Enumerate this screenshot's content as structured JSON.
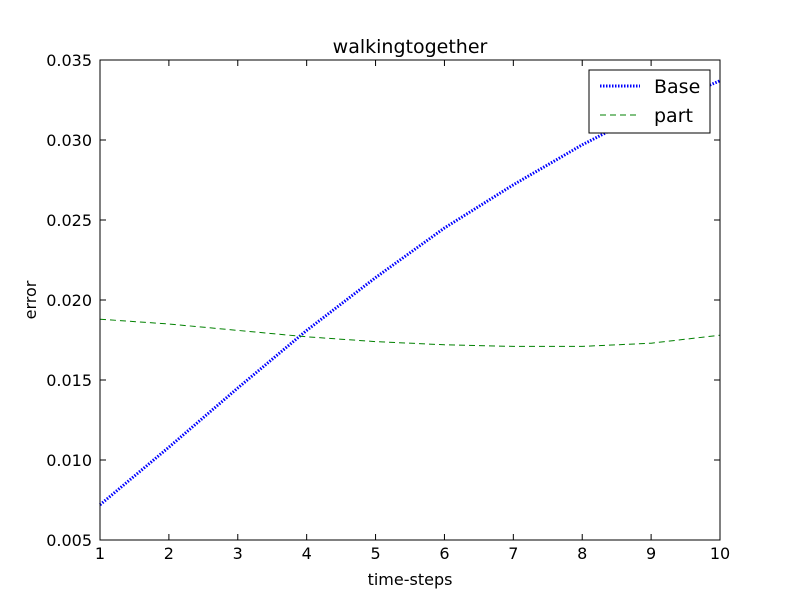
{
  "chart_data": {
    "type": "line",
    "title": "walkingtogether",
    "xlabel": "time-steps",
    "ylabel": "error",
    "xlim": [
      1,
      10
    ],
    "ylim": [
      0.005,
      0.035
    ],
    "xticks": [
      1,
      2,
      3,
      4,
      5,
      6,
      7,
      8,
      9,
      10
    ],
    "xtick_labels": [
      "1",
      "2",
      "3",
      "4",
      "5",
      "6",
      "7",
      "8",
      "9",
      "10"
    ],
    "yticks": [
      0.005,
      0.01,
      0.015,
      0.02,
      0.025,
      0.03,
      0.035
    ],
    "ytick_labels": [
      "0.005",
      "0.010",
      "0.015",
      "0.020",
      "0.025",
      "0.030",
      "0.035"
    ],
    "grid": false,
    "legend_position": "top-right",
    "x": [
      1,
      2,
      3,
      4,
      5,
      6,
      7,
      8,
      9,
      10
    ],
    "series": [
      {
        "name": "Base",
        "color": "#0000ff",
        "style": "dotted",
        "values": [
          0.0072,
          0.0108,
          0.0145,
          0.0181,
          0.0214,
          0.0245,
          0.0272,
          0.0297,
          0.0319,
          0.0337
        ]
      },
      {
        "name": "part",
        "color": "#008000",
        "style": "dashed",
        "values": [
          0.0188,
          0.0185,
          0.0181,
          0.0177,
          0.0174,
          0.0172,
          0.0171,
          0.0171,
          0.0173,
          0.0178
        ]
      }
    ]
  }
}
